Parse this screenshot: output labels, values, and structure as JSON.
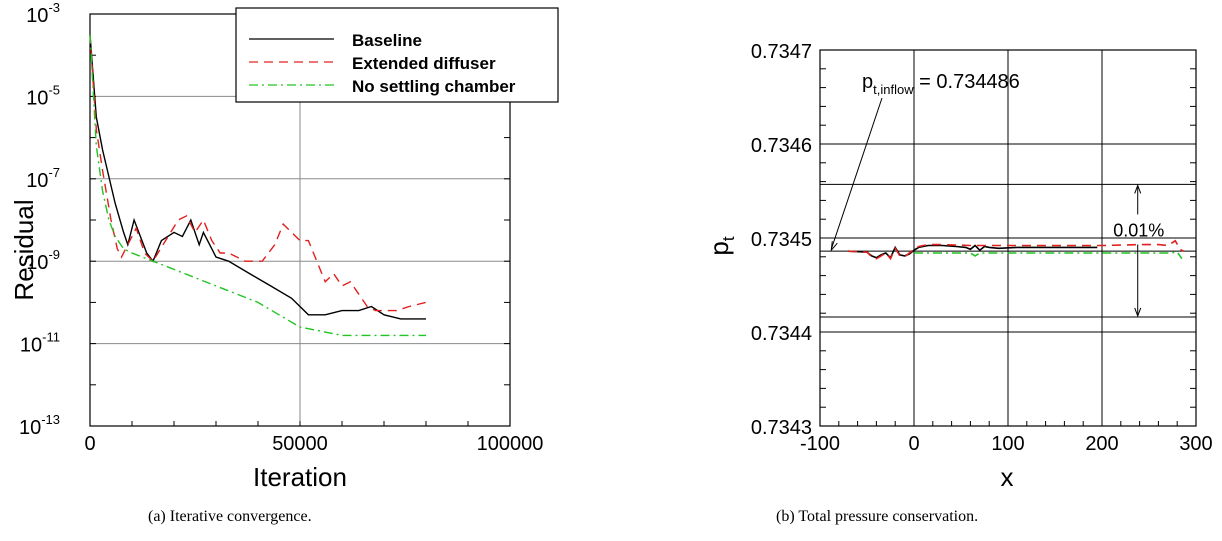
{
  "chart_data": [
    {
      "type": "line",
      "caption": "(a) Iterative convergence.",
      "xlabel": "Iteration",
      "ylabel": "Residual",
      "xlim": [
        0,
        100000
      ],
      "ylim_exp": [
        -13,
        -3
      ],
      "yscale": "log",
      "xticks": [
        0,
        50000,
        100000
      ],
      "xtick_labels": [
        "0",
        "50000",
        "100000"
      ],
      "yticks_exp": [
        -3,
        -5,
        -7,
        -9,
        -11,
        -13
      ],
      "ytick_labels": [
        "10",
        "10",
        "10",
        "10",
        "10",
        "10"
      ],
      "ytick_exponents": [
        "-3",
        "-5",
        "-7",
        "-9",
        "-11",
        "-13"
      ],
      "grid": true,
      "legend_position": "top-right",
      "series": [
        {
          "name": "Baseline",
          "color": "#000000",
          "style": "solid",
          "x": [
            0,
            1500,
            3000,
            6000,
            8000,
            9000,
            10500,
            12000,
            13500,
            15000,
            17000,
            20000,
            22000,
            24000,
            26000,
            27000,
            28500,
            30000,
            33000,
            38000,
            43000,
            48000,
            52000,
            56000,
            60000,
            64000,
            67000,
            70000,
            74000,
            78000,
            80000
          ],
          "y_exp": [
            -3.5,
            -5.5,
            -6.3,
            -7.6,
            -8.3,
            -8.6,
            -8.0,
            -8.4,
            -8.8,
            -9.0,
            -8.5,
            -8.3,
            -8.4,
            -8.0,
            -8.6,
            -8.3,
            -8.6,
            -8.9,
            -9.0,
            -9.3,
            -9.6,
            -9.9,
            -10.3,
            -10.3,
            -10.2,
            -10.2,
            -10.1,
            -10.3,
            -10.4,
            -10.4,
            -10.4
          ]
        },
        {
          "name": "Extended diffuser",
          "color": "#e0201e",
          "style": "dashed",
          "x": [
            0,
            1500,
            3000,
            5000,
            6500,
            7500,
            9000,
            11000,
            13000,
            15000,
            18000,
            21000,
            23000,
            25000,
            27000,
            29000,
            31000,
            33000,
            37000,
            41000,
            44000,
            46000,
            48000,
            50000,
            52000,
            54000,
            56000,
            58000,
            60000,
            62000,
            64000,
            66000,
            68000,
            70000,
            73000,
            76000,
            80000
          ],
          "y_exp": [
            -3.5,
            -5.8,
            -6.8,
            -8.0,
            -8.7,
            -8.9,
            -8.6,
            -8.2,
            -8.8,
            -9.0,
            -8.5,
            -8.0,
            -7.9,
            -8.3,
            -8.0,
            -8.5,
            -8.8,
            -8.8,
            -9.0,
            -9.0,
            -8.6,
            -8.1,
            -8.3,
            -8.5,
            -8.5,
            -9.0,
            -9.5,
            -9.3,
            -9.6,
            -9.5,
            -9.8,
            -10.1,
            -10.2,
            -10.2,
            -10.2,
            -10.1,
            -10.0
          ]
        },
        {
          "name": "No settling chamber",
          "color": "#22c322",
          "style": "dashdot",
          "x": [
            0,
            1500,
            3000,
            4500,
            6000,
            8000,
            10000,
            15000,
            20000,
            30000,
            40000,
            45000,
            50000,
            55000,
            60000,
            70000,
            80000
          ],
          "y_exp": [
            -3.5,
            -6.2,
            -7.3,
            -8.0,
            -8.4,
            -8.7,
            -8.8,
            -9.0,
            -9.2,
            -9.6,
            -10.0,
            -10.3,
            -10.6,
            -10.7,
            -10.8,
            -10.8,
            -10.8
          ]
        }
      ]
    },
    {
      "type": "line",
      "caption": "(b) Total pressure conservation.",
      "xlabel": "x",
      "ylabel": "p",
      "ylabel_sub": "t",
      "xlim": [
        -100,
        300
      ],
      "ylim": [
        0.7343,
        0.7347
      ],
      "xticks": [
        -100,
        0,
        100,
        200,
        300
      ],
      "xtick_labels": [
        "-100",
        "0",
        "100",
        "200",
        "300"
      ],
      "yticks": [
        0.7343,
        0.7344,
        0.7345,
        0.7346,
        0.7347
      ],
      "ytick_labels": [
        "0.7343",
        "0.7344",
        "0.7345",
        "0.7346",
        "0.7347"
      ],
      "grid": true,
      "annotation": {
        "text_main": "p",
        "text_sub": "t,inflow",
        "text_value": " = 0.734486",
        "point": [
          -88,
          0.734486
        ]
      },
      "band": {
        "label": "0.01%",
        "upper": 0.734557,
        "lower": 0.734416,
        "x": 238
      },
      "series": [
        {
          "name": "",
          "color": "#000000",
          "style": "solid",
          "x": [
            -70,
            -50,
            -45,
            -40,
            -35,
            -30,
            -25,
            -20,
            -15,
            -10,
            -5,
            0,
            5,
            15,
            30,
            45,
            55,
            60,
            65,
            70,
            75,
            80,
            90,
            110,
            150,
            195
          ],
          "y": [
            0.734486,
            0.734485,
            0.734481,
            0.734479,
            0.734482,
            0.734484,
            0.734479,
            0.73449,
            0.734482,
            0.734481,
            0.734483,
            0.734487,
            0.73449,
            0.734492,
            0.734492,
            0.734491,
            0.73449,
            0.734488,
            0.734492,
            0.734487,
            0.734491,
            0.73449,
            0.734489,
            0.73449,
            0.73449,
            0.73449
          ]
        },
        {
          "name": "",
          "color": "#e0201e",
          "style": "dashed",
          "x": [
            -70,
            -50,
            -45,
            -40,
            -35,
            -30,
            -25,
            -20,
            -15,
            -10,
            -5,
            0,
            5,
            15,
            30,
            60,
            100,
            150,
            200,
            240,
            260,
            270,
            278,
            283,
            287
          ],
          "y": [
            0.734486,
            0.734485,
            0.73448,
            0.734478,
            0.734481,
            0.734484,
            0.734478,
            0.734489,
            0.734481,
            0.73448,
            0.734484,
            0.734488,
            0.734491,
            0.734493,
            0.734493,
            0.734492,
            0.734492,
            0.734492,
            0.734492,
            0.734493,
            0.734493,
            0.734492,
            0.734497,
            0.734488,
            0.734486
          ]
        },
        {
          "name": "",
          "color": "#22c322",
          "style": "dashdot",
          "x": [
            0,
            20,
            40,
            60,
            65,
            70,
            100,
            150,
            200,
            250,
            270,
            280,
            285
          ],
          "y": [
            0.734484,
            0.734484,
            0.734484,
            0.734484,
            0.734481,
            0.734484,
            0.734484,
            0.734484,
            0.734484,
            0.734484,
            0.734484,
            0.734485,
            0.734478
          ]
        }
      ]
    }
  ]
}
